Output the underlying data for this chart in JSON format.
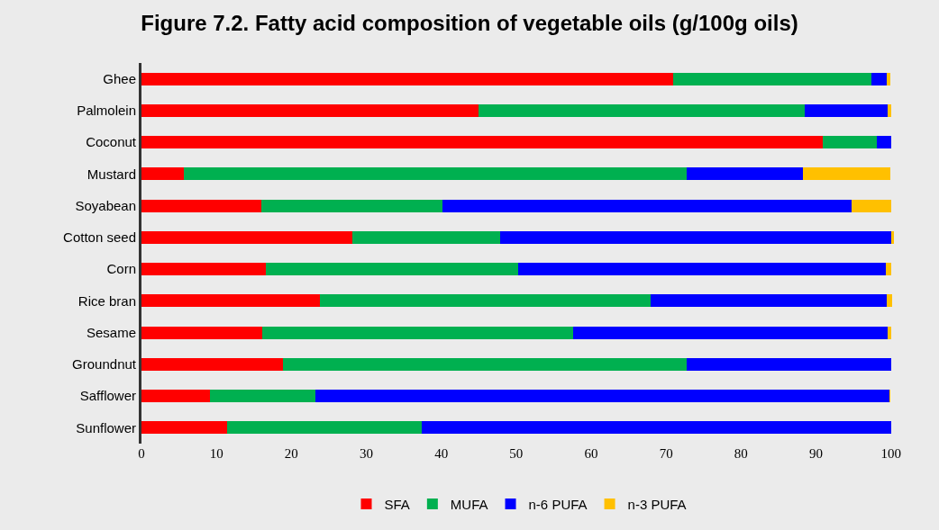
{
  "chart_data": {
    "type": "bar",
    "orientation": "horizontal",
    "stacked": true,
    "title": "Figure 7.2. Fatty acid composition of vegetable oils (g/100g oils)",
    "categories": [
      "Ghee",
      "Palmolein",
      "Coconut",
      "Mustard",
      "Soyabean",
      "Cotton seed",
      "Corn",
      "Rice bran",
      "Sesame",
      "Groundnut",
      "Safflower",
      "Sunflower"
    ],
    "series": [
      {
        "name": "SFA",
        "color": "#ff0000",
        "values": [
          70.9,
          45.0,
          90.9,
          5.7,
          16.0,
          28.1,
          16.6,
          23.8,
          16.1,
          18.9,
          9.1,
          11.4
        ]
      },
      {
        "name": "MUFA",
        "color": "#00b050",
        "values": [
          26.5,
          43.5,
          7.2,
          67.1,
          24.1,
          19.8,
          33.7,
          44.1,
          41.5,
          53.9,
          14.1,
          26.0
        ]
      },
      {
        "name": "n-6 PUFA",
        "color": "#0000ff",
        "values": [
          2.0,
          11.1,
          1.9,
          15.5,
          54.7,
          52.1,
          49.0,
          31.5,
          41.9,
          27.2,
          76.6,
          62.6
        ]
      },
      {
        "name": "n-3 PUFA",
        "color": "#ffc000",
        "values": [
          0.5,
          0.4,
          0,
          11.6,
          5.2,
          0.4,
          0.7,
          0.7,
          0.5,
          0,
          0.1,
          0
        ]
      }
    ],
    "xlim": [
      0,
      101
    ],
    "xticks": [
      0,
      10,
      20,
      30,
      40,
      50,
      60,
      70,
      80,
      90,
      100
    ],
    "grid": false,
    "legend": "bottom"
  }
}
